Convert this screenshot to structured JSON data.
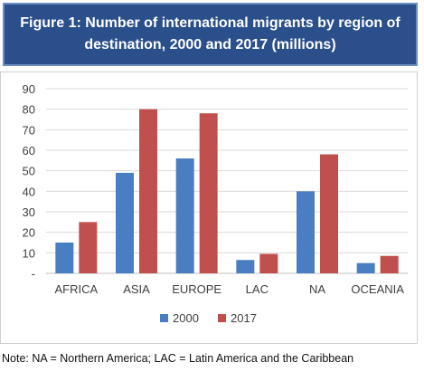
{
  "header": {
    "title": "Figure 1:  Number of international migrants by region of destination, 2000 and 2017 (millions)"
  },
  "note": "Note: NA = Northern America; LAC = Latin America and the Caribbean",
  "colors": {
    "series_2000": "#4a7ec2",
    "series_2017": "#c0504d",
    "header_bg": "#2a4f8b"
  },
  "chart_data": {
    "type": "bar",
    "categories": [
      "AFRICA",
      "ASIA",
      "EUROPE",
      "LAC",
      "NA",
      "OCEANIA"
    ],
    "series": [
      {
        "name": "2000",
        "values": [
          15,
          49,
          56,
          6.5,
          40,
          5
        ]
      },
      {
        "name": "2017",
        "values": [
          25,
          80,
          78,
          9.5,
          58,
          8.5
        ]
      }
    ],
    "y_ticks": [
      "-",
      "10",
      "20",
      "30",
      "40",
      "50",
      "60",
      "70",
      "80",
      "90"
    ],
    "ylim": [
      0,
      90
    ],
    "grid": true,
    "legend_position": "bottom"
  }
}
